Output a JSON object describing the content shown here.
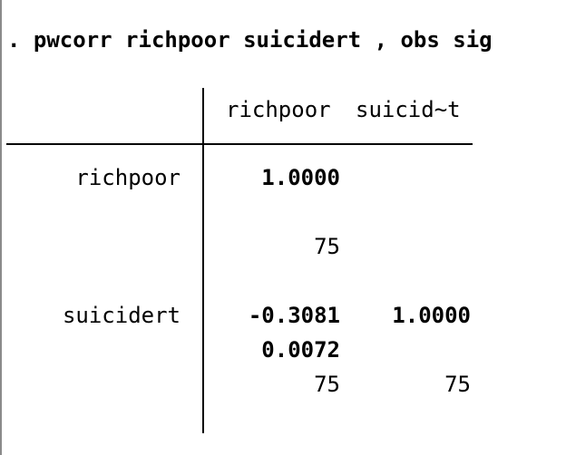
{
  "command": ". pwcorr richpoor suicidert , obs sig",
  "table": {
    "columns": [
      "richpoor",
      "suicid~t"
    ],
    "rows": [
      {
        "label": "richpoor",
        "corr": [
          "1.0000",
          ""
        ],
        "sig": [
          "",
          ""
        ],
        "obs": [
          "75",
          ""
        ]
      },
      {
        "label": "suicidert",
        "corr": [
          "-0.3081",
          "1.0000"
        ],
        "sig": [
          "0.0072",
          ""
        ],
        "obs": [
          "75",
          "75"
        ]
      }
    ]
  }
}
